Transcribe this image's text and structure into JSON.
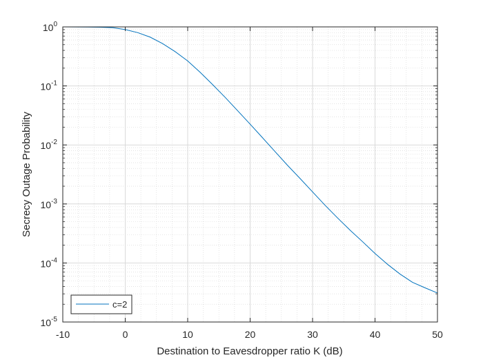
{
  "chart_data": {
    "type": "line",
    "title": "",
    "xlabel": "Destination to Eavesdropper ratio K (dB)",
    "ylabel": "Secrecy Outage Probability",
    "xlim": [
      -10,
      50
    ],
    "ylim": [
      1e-05,
      1
    ],
    "yscale": "log",
    "grid": true,
    "minor_grid": true,
    "legend_position": "bottom-left",
    "x_ticks": [
      -10,
      0,
      10,
      20,
      30,
      40,
      50
    ],
    "y_ticks": [
      1e-05,
      0.0001,
      0.001,
      0.01,
      0.1,
      1
    ],
    "y_tick_labels": [
      {
        "base": "10",
        "exp": "-5"
      },
      {
        "base": "10",
        "exp": "-4"
      },
      {
        "base": "10",
        "exp": "-3"
      },
      {
        "base": "10",
        "exp": "-2"
      },
      {
        "base": "10",
        "exp": "-1"
      },
      {
        "base": "10",
        "exp": "0"
      }
    ],
    "colors": {
      "series": "#0072BD",
      "axis": "#262626",
      "grid": "#d9d9d9"
    },
    "series": [
      {
        "name": "c=2",
        "x": [
          -10,
          -8,
          -6,
          -4,
          -2,
          0,
          2,
          4,
          6,
          8,
          10,
          12,
          14,
          16,
          18,
          20,
          22,
          24,
          26,
          28,
          30,
          32,
          34,
          36,
          38,
          40,
          42,
          44,
          46,
          48,
          50
        ],
        "y": [
          0.999,
          0.997,
          0.993,
          0.985,
          0.97,
          0.9,
          0.8,
          0.67,
          0.52,
          0.38,
          0.265,
          0.17,
          0.105,
          0.064,
          0.038,
          0.0225,
          0.0132,
          0.0077,
          0.0045,
          0.0027,
          0.0016,
          0.00095,
          0.00058,
          0.00036,
          0.00023,
          0.000145,
          9.5e-05,
          6.5e-05,
          4.7e-05,
          3.8e-05,
          3.1e-05
        ]
      }
    ]
  }
}
